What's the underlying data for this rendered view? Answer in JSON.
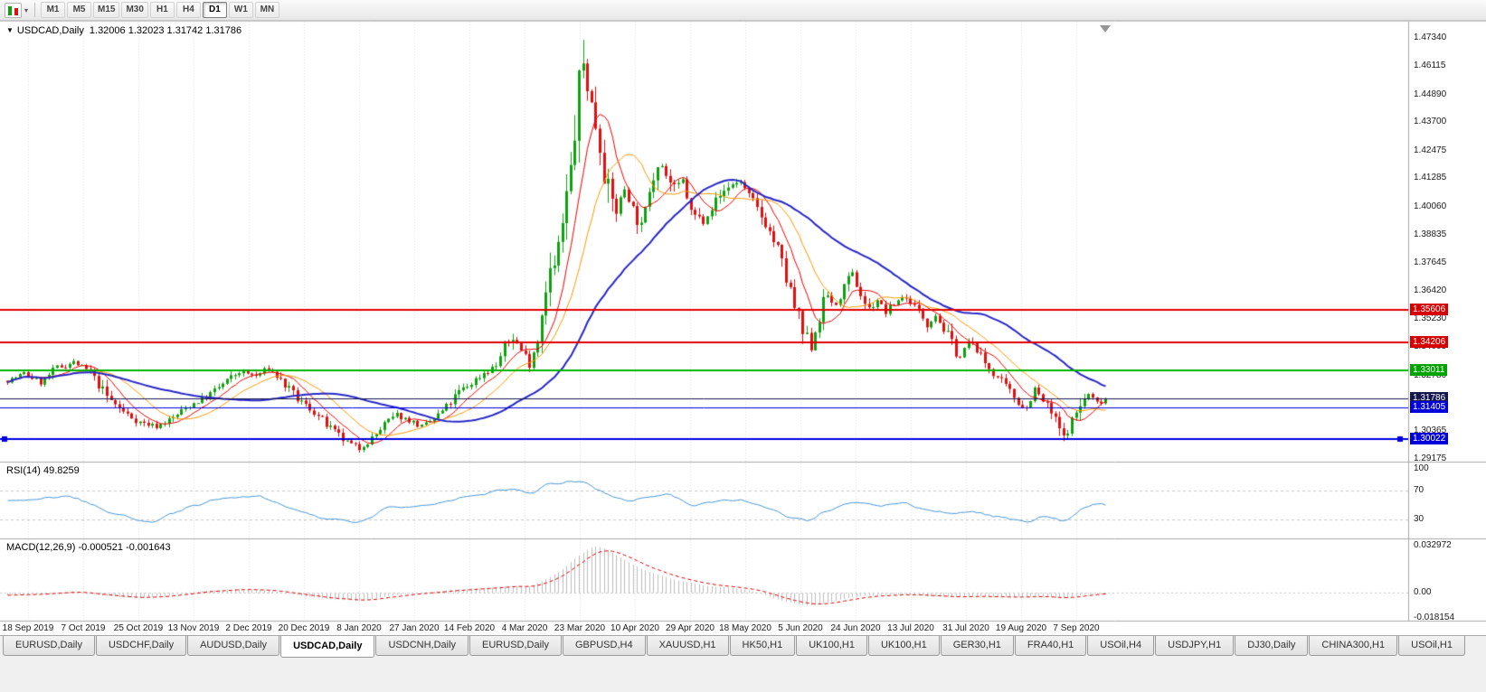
{
  "toolbar": {
    "dropdown_glyph": "▾",
    "timeframes": [
      "M1",
      "M5",
      "M15",
      "M30",
      "H1",
      "H4",
      "D1",
      "W1",
      "MN"
    ],
    "active_timeframe": "D1"
  },
  "chart_header": {
    "dropdown_glyph": "▼",
    "symbol": "USDCAD,Daily",
    "ohlc": "1.32006 1.32023 1.31742 1.31786"
  },
  "panes": {
    "rsi_label": "RSI(14) 49.8259",
    "macd_label": "MACD(12,26,9) -0.000521 -0.001643"
  },
  "price_axis": {
    "ticks": [
      "1.47340",
      "1.46115",
      "1.44890",
      "1.43700",
      "1.42475",
      "1.41285",
      "1.40060",
      "1.38835",
      "1.37645",
      "1.36420",
      "1.35230",
      "1.34005",
      "1.32780",
      "1.31590",
      "1.30365",
      "1.29175"
    ],
    "tags": [
      {
        "label": "1.35606",
        "value": 1.35606,
        "color": "#d60000"
      },
      {
        "label": "1.34206",
        "value": 1.34206,
        "color": "#d60000"
      },
      {
        "label": "1.33011",
        "value": 1.33011,
        "color": "#00a400"
      },
      {
        "label": "1.31786",
        "value": 1.31786,
        "color": "#16164f"
      },
      {
        "label": "1.31405",
        "value": 1.31405,
        "color": "#0000dd"
      },
      {
        "label": "1.30022",
        "value": 1.30022,
        "color": "#0000dd"
      }
    ],
    "rsi_ticks": [
      "100",
      "70",
      "30"
    ],
    "macd_ticks": [
      "0.032972",
      "0.00",
      "-0.018154"
    ]
  },
  "time_axis": {
    "labels": [
      "18 Sep 2019",
      "7 Oct 2019",
      "25 Oct 2019",
      "13 Nov 2019",
      "2 Dec 2019",
      "20 Dec 2019",
      "8 Jan 2020",
      "27 Jan 2020",
      "14 Feb 2020",
      "4 Mar 2020",
      "23 Mar 2020",
      "10 Apr 2020",
      "29 Apr 2020",
      "18 May 2020",
      "5 Jun 2020",
      "24 Jun 2020",
      "13 Jul 2020",
      "31 Jul 2020",
      "19 Aug 2020",
      "7 Sep 2020"
    ]
  },
  "tabs": {
    "items": [
      "EURUSD,Daily",
      "USDCHF,Daily",
      "AUDUSD,Daily",
      "USDCAD,Daily",
      "USDCNH,Daily",
      "EURUSD,Daily",
      "GBPUSD,H4",
      "XAUUSD,H1",
      "HK50,H1",
      "UK100,H1",
      "UK100,H1",
      "GER30,H1",
      "FRA40,H1",
      "USOil,H4",
      "USDJPY,H1",
      "DJ30,Daily",
      "CHINA300,H1",
      "USOil,H1"
    ],
    "active_index": 3
  },
  "chart_data": {
    "type": "candlestick",
    "symbol": "USDCAD",
    "period": "Daily",
    "bars": 266,
    "ohlc_current": {
      "open": 1.32006,
      "high": 1.32023,
      "low": 1.31742,
      "close": 1.31786
    },
    "y_axis_top": 1.4734,
    "y_axis_bottom": 1.29175,
    "candle_colors": {
      "up": "#0fa00f",
      "down": "#e01010"
    },
    "close_anchors": [
      [
        0,
        1.3255
      ],
      [
        4,
        1.3285
      ],
      [
        8,
        1.3248
      ],
      [
        12,
        1.331
      ],
      [
        16,
        1.3335
      ],
      [
        20,
        1.329
      ],
      [
        24,
        1.3185
      ],
      [
        28,
        1.312
      ],
      [
        32,
        1.3075
      ],
      [
        36,
        1.3058
      ],
      [
        40,
        1.3095
      ],
      [
        44,
        1.315
      ],
      [
        48,
        1.3185
      ],
      [
        52,
        1.324
      ],
      [
        56,
        1.3295
      ],
      [
        60,
        1.3275
      ],
      [
        63,
        1.331
      ],
      [
        66,
        1.3255
      ],
      [
        70,
        1.3175
      ],
      [
        74,
        1.312
      ],
      [
        78,
        1.3045
      ],
      [
        82,
        1.2985
      ],
      [
        85,
        1.2962
      ],
      [
        88,
        1.3005
      ],
      [
        91,
        1.3065
      ],
      [
        94,
        1.3105
      ],
      [
        97,
        1.3085
      ],
      [
        100,
        1.3055
      ],
      [
        103,
        1.309
      ],
      [
        106,
        1.314
      ],
      [
        109,
        1.3205
      ],
      [
        112,
        1.3245
      ],
      [
        115,
        1.329
      ],
      [
        118,
        1.332
      ],
      [
        120,
        1.34
      ],
      [
        122,
        1.3445
      ],
      [
        124,
        1.3385
      ],
      [
        126,
        1.3335
      ],
      [
        128,
        1.3425
      ],
      [
        130,
        1.369
      ],
      [
        132,
        1.3745
      ],
      [
        134,
        1.3925
      ],
      [
        136,
        1.416
      ],
      [
        138,
        1.451
      ],
      [
        139,
        1.462
      ],
      [
        141,
        1.445
      ],
      [
        143,
        1.428
      ],
      [
        145,
        1.406
      ],
      [
        147,
        1.3995
      ],
      [
        149,
        1.4085
      ],
      [
        151,
        1.4
      ],
      [
        153,
        1.391
      ],
      [
        155,
        1.409
      ],
      [
        157,
        1.423
      ],
      [
        159,
        1.414
      ],
      [
        161,
        1.4075
      ],
      [
        163,
        1.412
      ],
      [
        165,
        1.3975
      ],
      [
        168,
        1.3945
      ],
      [
        171,
        1.403
      ],
      [
        174,
        1.4095
      ],
      [
        177,
        1.4115
      ],
      [
        180,
        1.402
      ],
      [
        183,
        1.3935
      ],
      [
        186,
        1.382
      ],
      [
        189,
        1.363
      ],
      [
        192,
        1.3455
      ],
      [
        194,
        1.3405
      ],
      [
        196,
        1.353
      ],
      [
        198,
        1.3625
      ],
      [
        200,
        1.3575
      ],
      [
        202,
        1.3655
      ],
      [
        204,
        1.3705
      ],
      [
        206,
        1.3625
      ],
      [
        208,
        1.356
      ],
      [
        210,
        1.3605
      ],
      [
        212,
        1.355
      ],
      [
        214,
        1.3585
      ],
      [
        216,
        1.362
      ],
      [
        218,
        1.3595
      ],
      [
        220,
        1.3555
      ],
      [
        222,
        1.3505
      ],
      [
        224,
        1.354
      ],
      [
        226,
        1.3475
      ],
      [
        228,
        1.3415
      ],
      [
        230,
        1.3355
      ],
      [
        232,
        1.342
      ],
      [
        234,
        1.3385
      ],
      [
        236,
        1.333
      ],
      [
        238,
        1.329
      ],
      [
        240,
        1.3245
      ],
      [
        242,
        1.3205
      ],
      [
        244,
        1.3165
      ],
      [
        246,
        1.3135
      ],
      [
        248,
        1.3215
      ],
      [
        250,
        1.3165
      ],
      [
        252,
        1.3115
      ],
      [
        254,
        1.3045
      ],
      [
        255,
        1.3
      ],
      [
        257,
        1.3085
      ],
      [
        259,
        1.315
      ],
      [
        261,
        1.3195
      ],
      [
        263,
        1.316
      ],
      [
        265,
        1.31786
      ]
    ],
    "key_points": {
      "spike_high": [
        139,
        1.467
      ],
      "september_low": [
        255,
        1.2994
      ]
    },
    "horizontal_lines": [
      {
        "value": 1.35606,
        "color": "#e00000",
        "width": 2
      },
      {
        "value": 1.34206,
        "color": "#e00000",
        "width": 2
      },
      {
        "value": 1.33011,
        "color": "#00b400",
        "width": 2
      },
      {
        "value": 1.31786,
        "color": "#16164f",
        "width": 1
      },
      {
        "value": 1.31405,
        "color": "#0000e0",
        "width": 1
      },
      {
        "value": 1.30022,
        "color": "#0000e0",
        "width": 2,
        "handles": true
      }
    ],
    "moving_averages": [
      {
        "name": "ma-fast",
        "period": 8,
        "color": "#f00000",
        "width": 1
      },
      {
        "name": "ma-mid",
        "period": 16,
        "color": "#ff9900",
        "width": 1
      },
      {
        "name": "ma-slow",
        "period": 40,
        "color": "#2828c8",
        "width": 2
      }
    ],
    "rsi": {
      "period": 14,
      "current": 49.8259,
      "color": "#4897d8",
      "levels": [
        70,
        30
      ],
      "anchors": [
        [
          0,
          55
        ],
        [
          8,
          60
        ],
        [
          16,
          62
        ],
        [
          24,
          40
        ],
        [
          32,
          30
        ],
        [
          36,
          28
        ],
        [
          44,
          48
        ],
        [
          52,
          58
        ],
        [
          60,
          62
        ],
        [
          66,
          50
        ],
        [
          74,
          35
        ],
        [
          82,
          26
        ],
        [
          85,
          24
        ],
        [
          91,
          45
        ],
        [
          97,
          48
        ],
        [
          103,
          52
        ],
        [
          109,
          60
        ],
        [
          115,
          66
        ],
        [
          122,
          73
        ],
        [
          126,
          64
        ],
        [
          130,
          76
        ],
        [
          134,
          81
        ],
        [
          139,
          84
        ],
        [
          143,
          70
        ],
        [
          147,
          58
        ],
        [
          151,
          55
        ],
        [
          155,
          62
        ],
        [
          160,
          65
        ],
        [
          165,
          50
        ],
        [
          171,
          55
        ],
        [
          177,
          58
        ],
        [
          183,
          45
        ],
        [
          189,
          33
        ],
        [
          194,
          27
        ],
        [
          198,
          43
        ],
        [
          204,
          54
        ],
        [
          210,
          48
        ],
        [
          216,
          53
        ],
        [
          222,
          44
        ],
        [
          228,
          36
        ],
        [
          232,
          43
        ],
        [
          238,
          35
        ],
        [
          244,
          30
        ],
        [
          246,
          28
        ],
        [
          250,
          34
        ],
        [
          255,
          26
        ],
        [
          259,
          46
        ],
        [
          263,
          53
        ],
        [
          265,
          49.8259
        ]
      ]
    },
    "macd": {
      "fast": 12,
      "slow": 26,
      "signal": 9,
      "current_main": -0.000521,
      "current_signal": -0.001643,
      "histogram_color": "#bdbdbd",
      "signal_color": "#e00000",
      "scale_max": 0.032972,
      "scale_zero": 0.0,
      "scale_min": -0.018154,
      "anchors": [
        [
          0,
          -0.002
        ],
        [
          8,
          -0.0012
        ],
        [
          16,
          0.0006
        ],
        [
          24,
          -0.0028
        ],
        [
          32,
          -0.0042
        ],
        [
          40,
          -0.002
        ],
        [
          48,
          0.0012
        ],
        [
          56,
          0.0022
        ],
        [
          63,
          0.0015
        ],
        [
          70,
          -0.002
        ],
        [
          78,
          -0.0048
        ],
        [
          85,
          -0.0062
        ],
        [
          91,
          -0.003
        ],
        [
          97,
          -0.0008
        ],
        [
          103,
          0.0006
        ],
        [
          109,
          0.002
        ],
        [
          115,
          0.003
        ],
        [
          122,
          0.0046
        ],
        [
          126,
          0.004
        ],
        [
          130,
          0.009
        ],
        [
          134,
          0.016
        ],
        [
          137,
          0.024
        ],
        [
          140,
          0.03
        ],
        [
          142,
          0.033
        ],
        [
          144,
          0.0312
        ],
        [
          146,
          0.028
        ],
        [
          149,
          0.023
        ],
        [
          152,
          0.018
        ],
        [
          155,
          0.0145
        ],
        [
          158,
          0.0115
        ],
        [
          161,
          0.009
        ],
        [
          164,
          0.0072
        ],
        [
          167,
          0.0055
        ],
        [
          170,
          0.0042
        ],
        [
          173,
          0.0036
        ],
        [
          176,
          0.003
        ],
        [
          179,
          0.0015
        ],
        [
          182,
          -0.001
        ],
        [
          185,
          -0.004
        ],
        [
          188,
          -0.0068
        ],
        [
          191,
          -0.0088
        ],
        [
          194,
          -0.0095
        ],
        [
          197,
          -0.008
        ],
        [
          200,
          -0.006
        ],
        [
          203,
          -0.004
        ],
        [
          206,
          -0.0028
        ],
        [
          209,
          -0.0022
        ],
        [
          212,
          -0.002
        ],
        [
          215,
          -0.0016
        ],
        [
          218,
          -0.0018
        ],
        [
          221,
          -0.0024
        ],
        [
          224,
          -0.0028
        ],
        [
          227,
          -0.0034
        ],
        [
          230,
          -0.0032
        ],
        [
          233,
          -0.0028
        ],
        [
          236,
          -0.003
        ],
        [
          239,
          -0.0033
        ],
        [
          242,
          -0.0035
        ],
        [
          245,
          -0.0036
        ],
        [
          248,
          -0.0028
        ],
        [
          251,
          -0.0033
        ],
        [
          254,
          -0.0042
        ],
        [
          256,
          -0.0038
        ],
        [
          258,
          -0.0026
        ],
        [
          261,
          -0.0012
        ],
        [
          263,
          -0.0007
        ],
        [
          265,
          -0.000521
        ]
      ]
    }
  }
}
